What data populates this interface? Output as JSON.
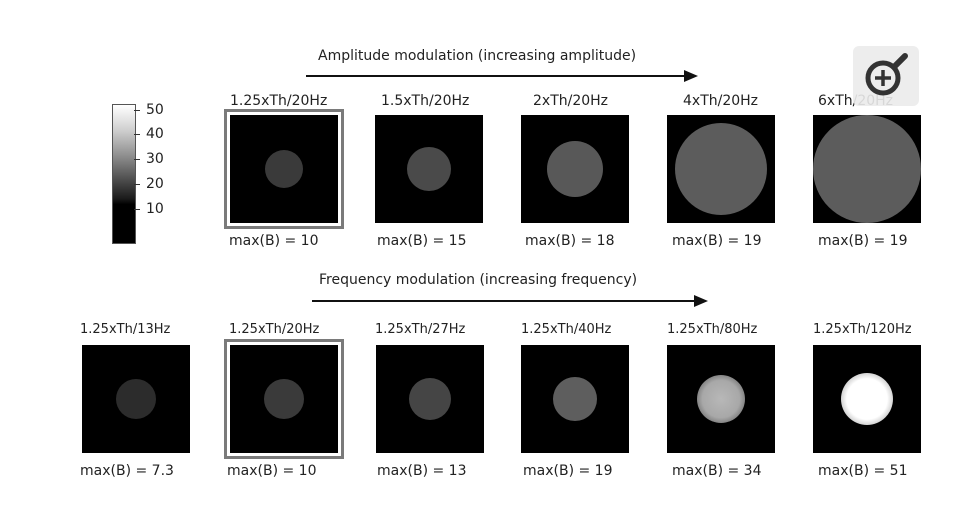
{
  "figure": {
    "amplitude_title": "Amplitude modulation (increasing amplitude)",
    "frequency_title": "Frequency modulation (increasing frequency)",
    "colorbar": {
      "ticks": [
        "50",
        "40",
        "30",
        "20",
        "10"
      ]
    },
    "amplitude_panels": [
      {
        "label": "1.25xTh/20Hz",
        "max_label": "max(B) = 10",
        "max_b": 10,
        "framed": true
      },
      {
        "label": "1.5xTh/20Hz",
        "max_label": "max(B) = 15",
        "max_b": 15,
        "framed": false
      },
      {
        "label": "2xTh/20Hz",
        "max_label": "max(B) = 18",
        "max_b": 18,
        "framed": false
      },
      {
        "label": "4xTh/20Hz",
        "max_label": "max(B) = 19",
        "max_b": 19,
        "framed": false
      },
      {
        "label": "6xTh/20Hz",
        "max_label": "max(B) = 19",
        "max_b": 19,
        "framed": false
      }
    ],
    "frequency_panels": [
      {
        "label": "1.25xTh/13Hz",
        "max_label": "max(B) = 7.3",
        "max_b": 7.3,
        "framed": false
      },
      {
        "label": "1.25xTh/20Hz",
        "max_label": "max(B) = 10",
        "max_b": 10,
        "framed": true
      },
      {
        "label": "1.25xTh/27Hz",
        "max_label": "max(B) = 13",
        "max_b": 13,
        "framed": false
      },
      {
        "label": "1.25xTh/40Hz",
        "max_label": "max(B) = 19",
        "max_b": 19,
        "framed": false
      },
      {
        "label": "1.25xTh/80Hz",
        "max_label": "max(B) = 34",
        "max_b": 34,
        "framed": false
      },
      {
        "label": "1.25xTh/120Hz",
        "max_label": "max(B) = 51",
        "max_b": 51,
        "framed": false
      }
    ]
  },
  "zoom_button": {
    "icon": "zoom-in-icon"
  }
}
